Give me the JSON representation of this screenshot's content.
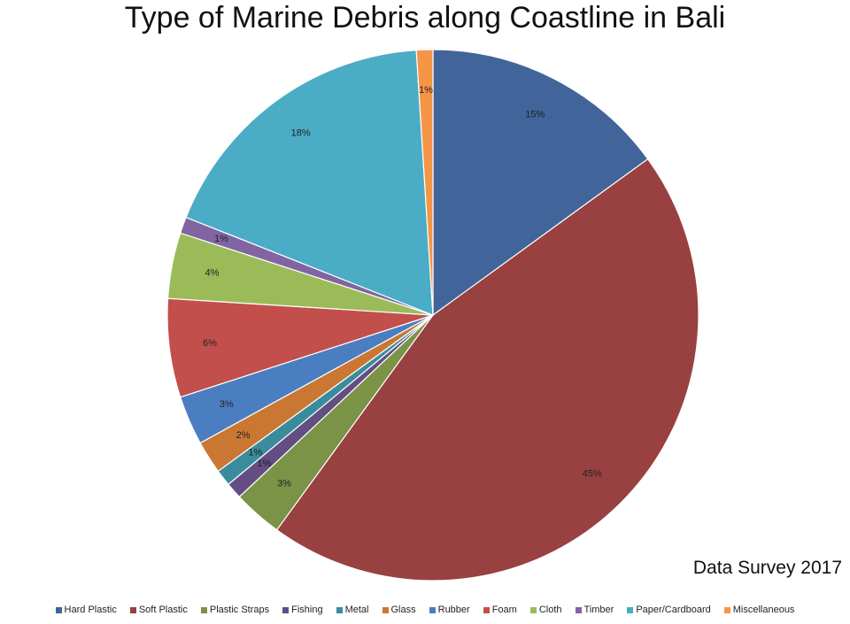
{
  "chart_data": {
    "type": "pie",
    "title": "Type of Marine Debris along Coastline in Bali",
    "note": "Data Survey 2017",
    "legend_position": "bottom",
    "slices": [
      {
        "name": "Hard Plastic",
        "value": 15,
        "label": "15%",
        "color": "#41659A"
      },
      {
        "name": "Soft Plastic",
        "value": 45,
        "label": "45%",
        "color": "#984140"
      },
      {
        "name": "Plastic Straps",
        "value": 3,
        "label": "3%",
        "color": "#7A9347"
      },
      {
        "name": "Fishing",
        "value": 1,
        "label": "1%",
        "color": "#634D82"
      },
      {
        "name": "Metal",
        "value": 1,
        "label": "1%",
        "color": "#3A8C9D"
      },
      {
        "name": "Glass",
        "value": 2,
        "label": "2%",
        "color": "#CA7733"
      },
      {
        "name": "Rubber",
        "value": 3,
        "label": "3%",
        "color": "#4A7EC1"
      },
      {
        "name": "Foam",
        "value": 6,
        "label": "6%",
        "color": "#C24F4C"
      },
      {
        "name": "Cloth",
        "value": 4,
        "label": "4%",
        "color": "#9BBB59"
      },
      {
        "name": "Timber",
        "value": 1,
        "label": "1%",
        "color": "#8065A2"
      },
      {
        "name": "Paper/Cardboard",
        "value": 18,
        "label": "18%",
        "color": "#4BACC6"
      },
      {
        "name": "Miscellaneous",
        "value": 1,
        "label": "1%",
        "color": "#F59546"
      }
    ]
  }
}
